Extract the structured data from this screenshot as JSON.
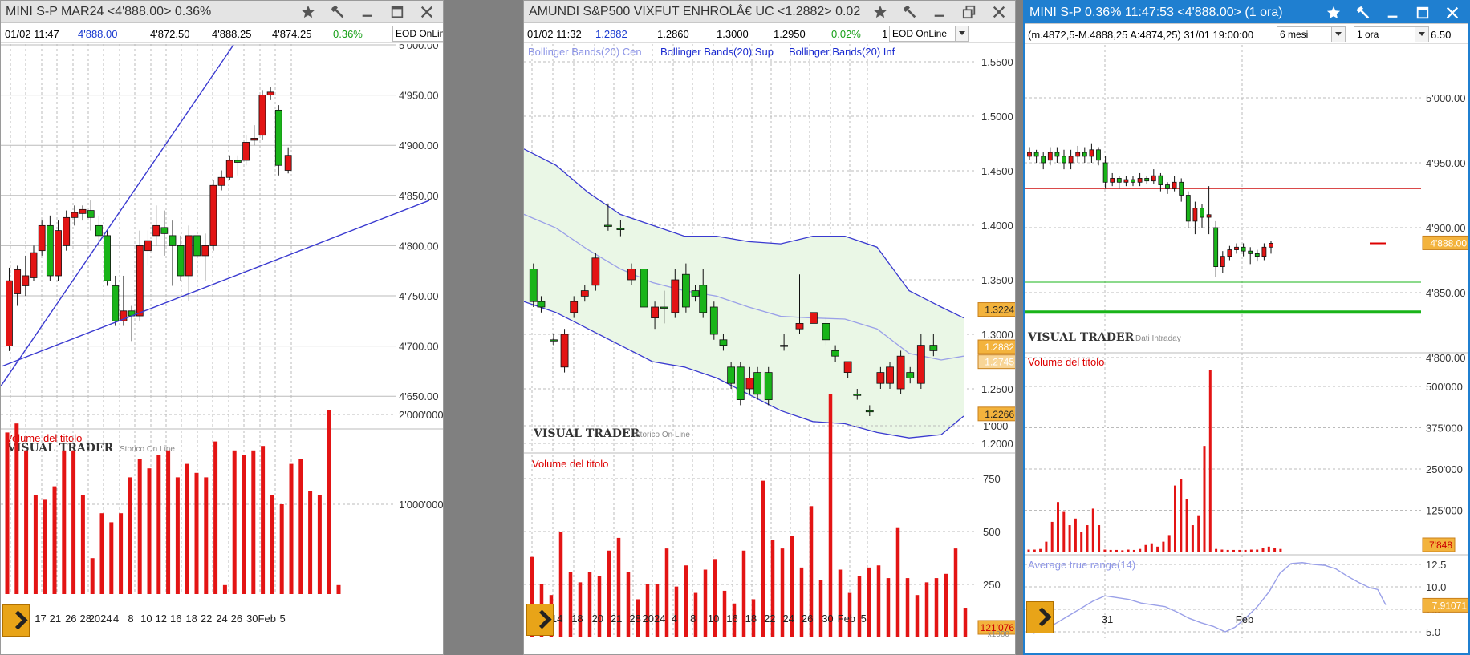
{
  "windows": [
    {
      "id": "w1",
      "title": "MINI S-P MAR24 <4'888.00> 0.36%",
      "active": false,
      "quote_row": [
        "01/02 11:47",
        "4'888.00",
        "4'872.50",
        "4'888.25",
        "4'874.25",
        "0.36%"
      ],
      "dropdown": "EOD OnLine",
      "y_labels": [
        "5'000.00",
        "4'950.00",
        "4'900.00",
        "4'850.00",
        "4'800.00",
        "4'750.00",
        "4'700.00",
        "4'650.00"
      ],
      "price_tag": "4'888.00",
      "watermark": "VISUAL TRADER",
      "watermark_sub": "Storico On Line",
      "volume_label": "Volume del titolo",
      "vol_y_labels": [
        "2'000'000",
        "1'000'000"
      ],
      "vol_tag": "115'468",
      "x_labels": [
        "13",
        "15",
        "17",
        "21",
        "26",
        "28",
        "2024",
        "4",
        "8",
        "10",
        "12",
        "16",
        "18",
        "22",
        "24",
        "26",
        "30",
        "Feb",
        "5"
      ]
    },
    {
      "id": "w2",
      "title": "AMUNDI S&P500 VIXFUT ENHROLÂ€ UC <1.2882> 0.02",
      "active": false,
      "quote_row": [
        "01/02 11:32",
        "1.2882",
        "1.2860",
        "1.3000",
        "1.2950",
        "0.02%",
        "1"
      ],
      "dropdown": "EOD OnLine",
      "legend": [
        "Bollinger Bands(20) Cen",
        "Bollinger Bands(20) Sup",
        "Bollinger Bands(20) Inf"
      ],
      "y_labels": [
        "1.5500",
        "1.5000",
        "1.4500",
        "1.4000",
        "1.3500",
        "1.3000",
        "1.2500",
        "1.2000"
      ],
      "tags": [
        "1.3224",
        "1.2882",
        "1.2745",
        "1.2266"
      ],
      "watermark": "VISUAL TRADER",
      "watermark_sub": "Storico On Line",
      "volume_label": "Volume del titolo",
      "vol_y_labels": [
        "1'000",
        "750",
        "500",
        "250"
      ],
      "vol_tag": "121'076",
      "vol_mult": "x1000",
      "x_labels": [
        "12",
        "14",
        "18",
        "20",
        "21",
        "28",
        "2024",
        "4",
        "8",
        "10",
        "16",
        "18",
        "22",
        "24",
        "26",
        "30",
        "Feb",
        "5"
      ]
    },
    {
      "id": "w3",
      "title": "MINI S-P 0.36% 11:47:53 <4'888.00> (1 ora)",
      "active": true,
      "quote_row": [
        "(m.4872,5-M.4888,25 A:4874,25)  31/01 19:00:00"
      ],
      "dropdown1": "6 mesi",
      "dropdown2": "1 ora",
      "partial": "6.50",
      "y_labels": [
        "5'000.00",
        "4'950.00",
        "4'900.00",
        "4'850.00",
        "4'800.00"
      ],
      "price_tag": "4'888.00",
      "watermark": "VISUAL TRADER",
      "watermark_sub": "Dati Intraday",
      "volume_label": "Volume del titolo",
      "vol_y_labels": [
        "500'000",
        "375'000",
        "250'000",
        "125'000"
      ],
      "vol_tag": "7'848",
      "atr_label": "Average true range(14)",
      "atr_y_labels": [
        "12.5",
        "10.0",
        "7.5",
        "5.0"
      ],
      "atr_tag": "7.91071",
      "x_labels": [
        "31",
        "Feb"
      ]
    }
  ],
  "colors": {
    "up": "#19b419",
    "down": "#e31414",
    "vol": "#e31414",
    "band": "#3a3ad0",
    "center": "#9aa0e8",
    "tag": "#f3b33d",
    "active_title": "#1f7fd0"
  }
}
